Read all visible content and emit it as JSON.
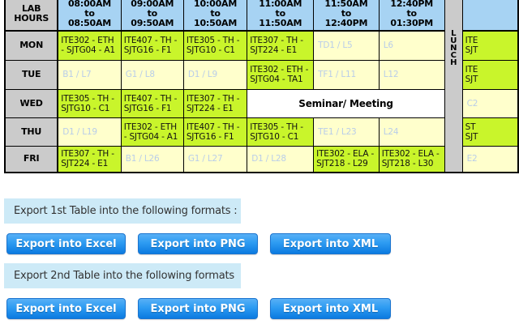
{
  "timetable": {
    "corner_label": "LAB\nHOURS",
    "time_headers": [
      "08:00AM\nto\n08:50AM",
      "09:00AM\nto\n09:50AM",
      "10:00AM\nto\n10:50AM",
      "11:00AM\nto\n11:50AM",
      "11:50AM\nto\n12:40PM",
      "12:40PM\nto\n01:30PM"
    ],
    "lunch_label": "LUNCH",
    "partial_header": "",
    "rows": [
      {
        "day": "MON",
        "cells": [
          {
            "text": "ITE302 - ETH - SJTG04 - A1",
            "kind": "class"
          },
          {
            "text": "ITE407 - TH - SJTG16 - F1",
            "kind": "class"
          },
          {
            "text": "ITE305 - TH - SJTG10 - C1",
            "kind": "class"
          },
          {
            "text": "ITE307 - TH - SJT224 - E1",
            "kind": "class"
          },
          {
            "text": "TD1 / L5",
            "kind": "lab"
          },
          {
            "text": "L6",
            "kind": "lab"
          },
          {
            "text": "ITE\nSJT",
            "kind": "class"
          }
        ]
      },
      {
        "day": "TUE",
        "cells": [
          {
            "text": "B1 / L7",
            "kind": "lab"
          },
          {
            "text": "G1 / L8",
            "kind": "lab"
          },
          {
            "text": "D1 / L9",
            "kind": "lab"
          },
          {
            "text": "ITE302 - ETH - SJTG04 - TA1",
            "kind": "class"
          },
          {
            "text": "TF1 / L11",
            "kind": "lab"
          },
          {
            "text": "L12",
            "kind": "lab"
          },
          {
            "text": "ITE\nSJT",
            "kind": "class"
          }
        ]
      },
      {
        "day": "WED",
        "cells": [
          {
            "text": "ITE305 - TH - SJTG10 - C1",
            "kind": "class"
          },
          {
            "text": "ITE407 - TH - SJTG16 - F1",
            "kind": "class"
          },
          {
            "text": "ITE307 - TH - SJT224 - E1",
            "kind": "class"
          },
          {
            "text": "Seminar/ Meeting",
            "kind": "seminar",
            "colspan": 3
          },
          {
            "text": "C2",
            "kind": "lab"
          }
        ]
      },
      {
        "day": "THU",
        "cells": [
          {
            "text": "D1 / L19",
            "kind": "lab"
          },
          {
            "text": "ITE302 - ETH - SJTG04 - A1",
            "kind": "class"
          },
          {
            "text": "ITE407 - TH - SJTG16 - F1",
            "kind": "class"
          },
          {
            "text": "ITE305 - TH - SJTG10 - C1",
            "kind": "class"
          },
          {
            "text": "TE1 / L23",
            "kind": "lab"
          },
          {
            "text": "L24",
            "kind": "lab"
          },
          {
            "text": "ST\nSJT",
            "kind": "class"
          }
        ]
      },
      {
        "day": "FRI",
        "cells": [
          {
            "text": "ITE307 - TH - SJT224 - E1",
            "kind": "class"
          },
          {
            "text": "B1 / L26",
            "kind": "lab"
          },
          {
            "text": "G1 / L27",
            "kind": "lab"
          },
          {
            "text": "D1 / L28",
            "kind": "lab"
          },
          {
            "text": "ITE302 - ELA - SJT218 - L29",
            "kind": "class"
          },
          {
            "text": "ITE302 - ELA - SJT218 - L30",
            "kind": "class"
          },
          {
            "text": "E2",
            "kind": "lab"
          }
        ]
      }
    ]
  },
  "export_sections": [
    {
      "label": "Export 1st Table into the following formats :",
      "buttons": [
        "Export into Excel",
        "Export into PNG",
        "Export into XML"
      ]
    },
    {
      "label": "Export 2nd Table into the following formats :",
      "buttons": [
        "Export into Excel",
        "Export into PNG",
        "Export into XML"
      ]
    }
  ],
  "colors": {
    "header_blue": "#a7d3f3",
    "day_gray": "#cbcbcb",
    "class_green": "#c9f52b",
    "lab_yellow": "#ffffcc",
    "lab_text": "#b9cde9",
    "bar_blue": "#cdeaf7",
    "button_blue": "#2196f3"
  }
}
